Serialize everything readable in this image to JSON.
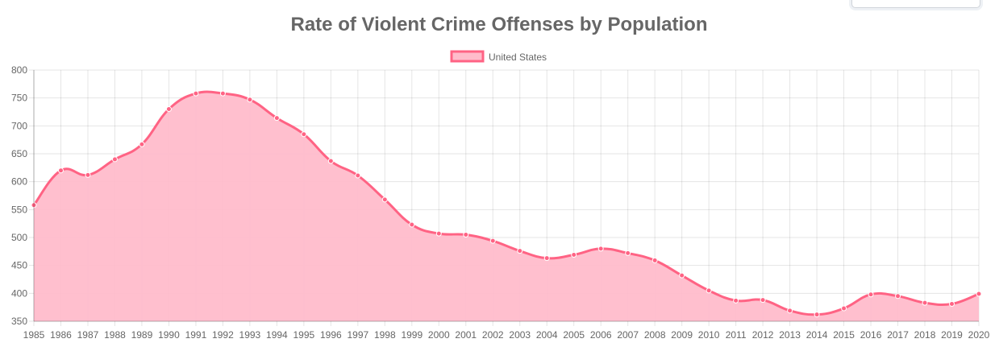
{
  "chart_data": {
    "type": "area",
    "title": "Rate of Violent Crime Offenses by Population",
    "xlabel": "",
    "ylabel": "",
    "ylim": [
      350,
      800
    ],
    "yticks": [
      350,
      400,
      450,
      500,
      550,
      600,
      650,
      700,
      750,
      800
    ],
    "grid": true,
    "legend_position": "top-center",
    "x": [
      1985,
      1986,
      1987,
      1988,
      1989,
      1990,
      1991,
      1992,
      1993,
      1994,
      1995,
      1996,
      1997,
      1998,
      1999,
      2000,
      2001,
      2002,
      2003,
      2004,
      2005,
      2006,
      2007,
      2008,
      2009,
      2010,
      2011,
      2012,
      2013,
      2014,
      2015,
      2016,
      2017,
      2018,
      2019,
      2020
    ],
    "series": [
      {
        "name": "United States",
        "color": "#ff6384",
        "fill": "#ffbccb",
        "values": [
          558,
          620,
          612,
          640,
          667,
          730,
          758,
          758,
          747,
          714,
          685,
          637,
          611,
          568,
          523,
          507,
          505,
          494,
          476,
          463,
          469,
          480,
          472,
          459,
          432,
          405,
          387,
          388,
          369,
          362,
          373,
          398,
          395,
          383,
          381,
          399
        ]
      }
    ]
  }
}
